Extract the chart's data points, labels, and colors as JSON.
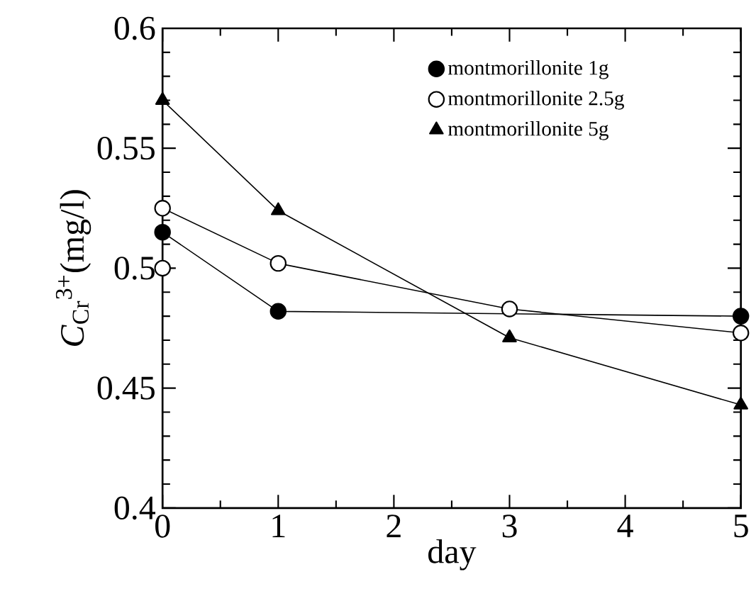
{
  "chart_data": {
    "type": "line",
    "xlabel": "day",
    "ylabel": "*C*$_{Cr}$$^{3+}$(mg/l)",
    "xlim": [
      0,
      5
    ],
    "xticks": [
      0,
      1,
      2,
      3,
      4,
      5
    ],
    "ylim": [
      0.4,
      0.6
    ],
    "yticks": [
      0.4,
      0.45,
      0.5,
      0.55,
      0.6
    ],
    "legend": "top right",
    "grid": false,
    "line_style": "solid",
    "series": [
      {
        "name": "montmorillonite 1g",
        "color": "#000000",
        "marker": "circle",
        "x": [
          0,
          1,
          3,
          5
        ],
        "values": [
          0.515,
          0.482,
          null,
          0.48
        ]
      },
      {
        "name": "montmorillonite 2.5g",
        "color": "#000000",
        "marker": "circle",
        "x": [
          0,
          0,
          1,
          3,
          5
        ],
        "values": [
          0.5,
          0.525,
          0.502,
          0.483,
          0.473
        ]
      },
      {
        "name": "montmorillonite 5g",
        "color": "#000000",
        "marker": "triangle",
        "x": [
          0,
          1,
          3,
          5
        ],
        "values": [
          0.57,
          0.524,
          0.471,
          0.443
        ]
      }
    ]
  }
}
